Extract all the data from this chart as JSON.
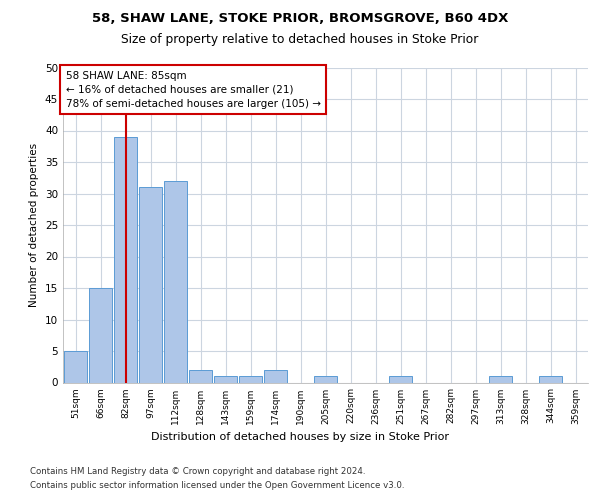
{
  "title1": "58, SHAW LANE, STOKE PRIOR, BROMSGROVE, B60 4DX",
  "title2": "Size of property relative to detached houses in Stoke Prior",
  "xlabel": "Distribution of detached houses by size in Stoke Prior",
  "ylabel": "Number of detached properties",
  "bins": [
    "51sqm",
    "66sqm",
    "82sqm",
    "97sqm",
    "112sqm",
    "128sqm",
    "143sqm",
    "159sqm",
    "174sqm",
    "190sqm",
    "205sqm",
    "220sqm",
    "236sqm",
    "251sqm",
    "267sqm",
    "282sqm",
    "297sqm",
    "313sqm",
    "328sqm",
    "344sqm",
    "359sqm"
  ],
  "values": [
    5,
    15,
    39,
    31,
    32,
    2,
    1,
    1,
    2,
    0,
    1,
    0,
    0,
    1,
    0,
    0,
    0,
    1,
    0,
    1,
    0
  ],
  "bar_color": "#aec6e8",
  "bar_edge_color": "#5b9bd5",
  "vline_bin_index": 2,
  "vline_color": "#cc0000",
  "annotation_text": "58 SHAW LANE: 85sqm\n← 16% of detached houses are smaller (21)\n78% of semi-detached houses are larger (105) →",
  "annotation_box_facecolor": "#ffffff",
  "annotation_box_edgecolor": "#cc0000",
  "ylim": [
    0,
    50
  ],
  "yticks": [
    0,
    5,
    10,
    15,
    20,
    25,
    30,
    35,
    40,
    45,
    50
  ],
  "bg_color": "#ffffff",
  "grid_color": "#ccd5e0",
  "footer1": "Contains HM Land Registry data © Crown copyright and database right 2024.",
  "footer2": "Contains public sector information licensed under the Open Government Licence v3.0."
}
